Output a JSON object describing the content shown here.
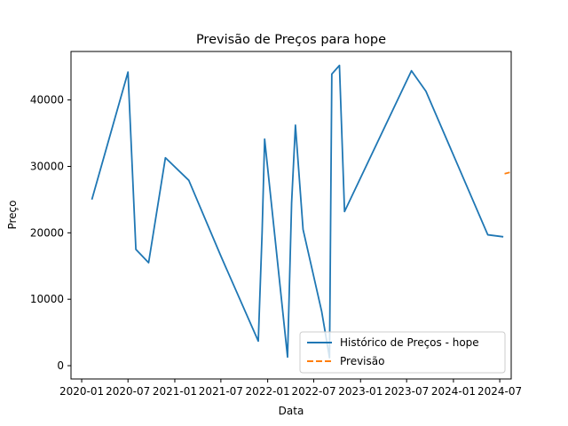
{
  "chart_data": {
    "type": "line",
    "title": "Previsão de Preços para hope",
    "xlabel": "Data",
    "ylabel": "Preço",
    "x_ticks": [
      "2020-01",
      "2020-07",
      "2021-01",
      "2021-07",
      "2022-01",
      "2022-07",
      "2023-01",
      "2023-07",
      "2024-01",
      "2024-07"
    ],
    "y_ticks": [
      "0",
      "10000",
      "20000",
      "30000",
      "40000"
    ],
    "xlim": [
      "2019-11-20",
      "2024-08-15"
    ],
    "ylim": [
      -2000,
      47300
    ],
    "legend_position": "lower right",
    "colors": {
      "history": "#1f77b4",
      "forecast": "#ff7f0e"
    },
    "series": [
      {
        "name": "Histórico de Preços - hope",
        "style": "solid",
        "points": [
          [
            "2020-02-10",
            25000
          ],
          [
            "2020-07-01",
            44200
          ],
          [
            "2020-08-01",
            17500
          ],
          [
            "2020-09-20",
            15500
          ],
          [
            "2020-11-25",
            31300
          ],
          [
            "2021-02-25",
            27900
          ],
          [
            "2021-07-01",
            16500
          ],
          [
            "2021-11-25",
            3700
          ],
          [
            "2021-12-10",
            20000
          ],
          [
            "2021-12-20",
            34100
          ],
          [
            "2022-03-20",
            1300
          ],
          [
            "2022-04-05",
            24500
          ],
          [
            "2022-04-20",
            36200
          ],
          [
            "2022-05-20",
            20500
          ],
          [
            "2022-08-01",
            8200
          ],
          [
            "2022-09-01",
            1200
          ],
          [
            "2022-09-10",
            43900
          ],
          [
            "2022-10-10",
            45200
          ],
          [
            "2022-10-30",
            23200
          ],
          [
            "2023-07-20",
            44400
          ],
          [
            "2023-09-15",
            41300
          ],
          [
            "2024-05-15",
            19700
          ],
          [
            "2024-07-15",
            19400
          ]
        ]
      },
      {
        "name": "Previsão",
        "style": "dashed",
        "points": [
          [
            "2024-07-20",
            28900
          ],
          [
            "2024-08-10",
            29100
          ]
        ]
      }
    ]
  }
}
